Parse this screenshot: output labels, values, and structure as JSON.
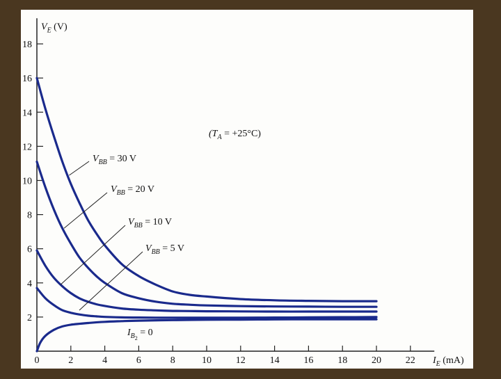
{
  "chart_data": {
    "type": "line",
    "xlabel": "I_E (mA)",
    "ylabel": "V_E (V)",
    "xlabel_parts": {
      "symbol": "I",
      "sub": "E",
      "unit": " (mA)"
    },
    "ylabel_parts": {
      "symbol": "V",
      "sub": "E",
      "unit": " (V)"
    },
    "annotation": {
      "pre": "(T",
      "sub": "A",
      "post": " = +25°C)"
    },
    "xlim": [
      0,
      23
    ],
    "ylim": [
      0,
      19.5
    ],
    "x_ticks": [
      0,
      2,
      4,
      6,
      8,
      10,
      12,
      14,
      16,
      18,
      20,
      22
    ],
    "y_ticks": [
      2,
      4,
      6,
      8,
      10,
      12,
      14,
      16,
      18
    ],
    "grid": false,
    "legend": "none",
    "line_color": "#1a2a8c",
    "series": [
      {
        "name": "V_BB = 30 V",
        "label_parts": {
          "pre": "V",
          "sub": "BB",
          "post": " = 30 V"
        },
        "x": [
          0,
          0.5,
          1,
          1.5,
          2,
          2.5,
          3,
          3.5,
          4,
          5,
          6,
          7,
          8,
          9,
          10,
          12,
          14,
          16,
          18,
          20
        ],
        "y": [
          16.0,
          14.2,
          12.6,
          11.1,
          9.8,
          8.7,
          7.7,
          6.9,
          6.2,
          5.1,
          4.4,
          3.9,
          3.5,
          3.3,
          3.2,
          3.05,
          2.98,
          2.95,
          2.93,
          2.93
        ]
      },
      {
        "name": "V_BB = 20 V",
        "label_parts": {
          "pre": "V",
          "sub": "BB",
          "post": " = 20 V"
        },
        "x": [
          0,
          0.5,
          1,
          1.5,
          2,
          2.5,
          3,
          3.5,
          4,
          5,
          6,
          7,
          8,
          9,
          10,
          12,
          14,
          16,
          18,
          20
        ],
        "y": [
          11.1,
          9.6,
          8.3,
          7.2,
          6.3,
          5.5,
          4.9,
          4.4,
          4.0,
          3.4,
          3.1,
          2.9,
          2.78,
          2.72,
          2.68,
          2.64,
          2.62,
          2.61,
          2.6,
          2.6
        ]
      },
      {
        "name": "V_BB = 10 V",
        "label_parts": {
          "pre": "V",
          "sub": "BB",
          "post": " = 10 V"
        },
        "x": [
          0,
          0.5,
          1,
          1.5,
          2,
          2.5,
          3,
          3.5,
          4,
          5,
          6,
          7,
          8,
          9,
          10,
          12,
          14,
          16,
          18,
          20
        ],
        "y": [
          5.9,
          5.0,
          4.3,
          3.8,
          3.4,
          3.1,
          2.9,
          2.75,
          2.65,
          2.5,
          2.43,
          2.39,
          2.36,
          2.35,
          2.34,
          2.33,
          2.32,
          2.32,
          2.32,
          2.32
        ]
      },
      {
        "name": "V_BB = 5 V",
        "label_parts": {
          "pre": "V",
          "sub": "BB",
          "post": " = 5 V"
        },
        "x": [
          0,
          0.5,
          1,
          1.5,
          2,
          2.5,
          3,
          3.5,
          4,
          5,
          6,
          7,
          8,
          9,
          10,
          12,
          14,
          16,
          18,
          20
        ],
        "y": [
          3.7,
          3.1,
          2.7,
          2.4,
          2.25,
          2.15,
          2.08,
          2.04,
          2.01,
          1.98,
          1.97,
          1.96,
          1.96,
          1.96,
          1.96,
          1.96,
          1.97,
          1.98,
          1.99,
          2.0
        ]
      },
      {
        "name": "I_B2 = 0",
        "label_parts": {
          "pre": "I",
          "sub": "B",
          "subsub": "2",
          "post": " = 0"
        },
        "x": [
          0,
          0.2,
          0.5,
          1,
          1.5,
          2,
          3,
          4,
          5,
          6,
          8,
          10,
          12,
          14,
          16,
          18,
          20
        ],
        "y": [
          0.0,
          0.5,
          0.9,
          1.25,
          1.45,
          1.55,
          1.65,
          1.72,
          1.76,
          1.79,
          1.82,
          1.84,
          1.85,
          1.86,
          1.87,
          1.87,
          1.87
        ]
      }
    ]
  }
}
